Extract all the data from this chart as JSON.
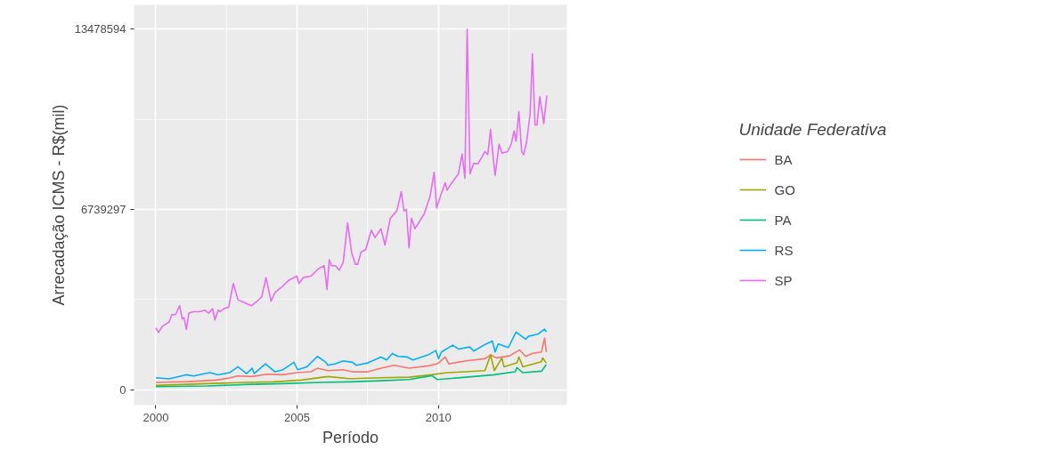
{
  "chart_data": {
    "type": "line",
    "xlabel": "Período",
    "ylabel": "Arrecadação ICMS - R$(mil)",
    "legend_title": "Unidade Federativa",
    "legend": "right",
    "grid": true,
    "xlim": [
      1999.23,
      2014.55
    ],
    "xticks": [
      2000,
      2005,
      2010
    ],
    "ylim": [
      -580000,
      14390000
    ],
    "yticks": [
      0,
      6739297,
      13478594
    ],
    "series": [
      {
        "name": "BA",
        "color": "#f8766d",
        "x": [
          2000.0,
          2001.14,
          2002.14,
          2002.61,
          2002.88,
          2003.41,
          2003.95,
          2004.48,
          2005.02,
          2005.49,
          2005.72,
          2006.09,
          2006.63,
          2006.96,
          2007.5,
          2007.97,
          2008.43,
          2008.97,
          2009.64,
          2009.97,
          2010.24,
          2010.37,
          2010.98,
          2011.65,
          2011.85,
          2012.05,
          2012.52,
          2012.88,
          2013.09,
          2013.32,
          2013.65,
          2013.76,
          2013.82
        ],
        "values": [
          266000,
          299000,
          355000,
          432000,
          510000,
          488000,
          576000,
          554000,
          632000,
          665000,
          798000,
          709000,
          743000,
          665000,
          665000,
          798000,
          909000,
          798000,
          887000,
          964000,
          1219000,
          964000,
          1075000,
          1153000,
          1297000,
          1186000,
          1263000,
          1485000,
          1241000,
          1352000,
          1408000,
          1928000,
          1408000
        ]
      },
      {
        "name": "GO",
        "color": "#a3a500",
        "x": [
          2000.0,
          2001.81,
          2003.15,
          2004.15,
          2005.15,
          2006.09,
          2006.83,
          2006.96,
          2007.97,
          2008.97,
          2009.77,
          2010.31,
          2010.98,
          2011.65,
          2011.85,
          2011.98,
          2012.25,
          2012.32,
          2012.78,
          2012.85,
          2012.99,
          2013.65,
          2013.69,
          2013.82
        ],
        "values": [
          155000,
          222000,
          266000,
          288000,
          355000,
          488000,
          410000,
          410000,
          443000,
          465000,
          554000,
          632000,
          665000,
          709000,
          1297000,
          709000,
          1186000,
          853000,
          997000,
          1219000,
          853000,
          1042000,
          1186000,
          997000
        ]
      },
      {
        "name": "PA",
        "color": "#00bf7d",
        "x": [
          2000.0,
          2001.81,
          2003.15,
          2004.48,
          2005.82,
          2006.83,
          2007.97,
          2008.97,
          2009.77,
          2009.97,
          2010.98,
          2011.98,
          2012.72,
          2012.78,
          2012.99,
          2013.65,
          2013.82
        ],
        "values": [
          111000,
          133000,
          188000,
          222000,
          266000,
          288000,
          332000,
          377000,
          521000,
          377000,
          465000,
          554000,
          665000,
          820000,
          632000,
          687000,
          931000
        ]
      },
      {
        "name": "RS",
        "color": "#00b0f6",
        "x": [
          2000.0,
          2000.47,
          2001.07,
          2001.34,
          2001.91,
          2002.21,
          2002.61,
          2002.91,
          2003.21,
          2003.41,
          2003.48,
          2003.88,
          2004.22,
          2004.48,
          2004.89,
          2005.02,
          2005.35,
          2005.72,
          2006.02,
          2006.09,
          2006.36,
          2006.63,
          2006.96,
          2007.1,
          2007.5,
          2007.97,
          2008.17,
          2008.37,
          2008.57,
          2008.9,
          2009.1,
          2009.64,
          2009.91,
          2010.01,
          2010.11,
          2010.51,
          2010.71,
          2011.11,
          2011.25,
          2011.65,
          2011.91,
          2012.01,
          2012.12,
          2012.48,
          2012.75,
          2013.09,
          2013.19,
          2013.52,
          2013.76,
          2013.82
        ],
        "values": [
          443000,
          399000,
          554000,
          510000,
          632000,
          554000,
          632000,
          853000,
          598000,
          798000,
          598000,
          964000,
          665000,
          731000,
          1020000,
          743000,
          853000,
          1241000,
          1020000,
          909000,
          964000,
          1075000,
          1020000,
          909000,
          997000,
          1219000,
          1108000,
          1352000,
          1241000,
          1219000,
          1108000,
          1297000,
          1463000,
          1153000,
          1408000,
          1662000,
          1518000,
          1596000,
          1441000,
          1685000,
          1818000,
          1408000,
          1707000,
          1574000,
          2150000,
          1884000,
          1995000,
          2073000,
          2261000,
          2150000
        ]
      },
      {
        "name": "SP",
        "color": "#e76bf3",
        "x": [
          2000.0,
          2000.1,
          2000.23,
          2000.47,
          2000.57,
          2000.7,
          2000.84,
          2000.94,
          2001.0,
          2001.08,
          2001.17,
          2001.34,
          2001.54,
          2001.74,
          2001.87,
          2002.01,
          2002.09,
          2002.21,
          2002.28,
          2002.41,
          2002.58,
          2002.74,
          2002.91,
          2003.15,
          2003.38,
          2003.58,
          2003.75,
          2003.9,
          2004.08,
          2004.22,
          2004.48,
          2004.69,
          2004.99,
          2005.07,
          2005.22,
          2005.49,
          2005.76,
          2005.96,
          2006.06,
          2006.14,
          2006.22,
          2006.36,
          2006.49,
          2006.63,
          2006.79,
          2006.93,
          2007.06,
          2007.15,
          2007.26,
          2007.43,
          2007.63,
          2007.76,
          2007.97,
          2008.11,
          2008.3,
          2008.53,
          2008.69,
          2008.78,
          2008.87,
          2008.96,
          2009.05,
          2009.17,
          2009.5,
          2009.71,
          2009.85,
          2009.94,
          2010.11,
          2010.24,
          2010.31,
          2010.44,
          2010.71,
          2010.84,
          2010.94,
          2011.02,
          2011.12,
          2011.25,
          2011.41,
          2011.65,
          2011.75,
          2011.85,
          2011.95,
          2012.01,
          2012.15,
          2012.25,
          2012.45,
          2012.58,
          2012.68,
          2012.75,
          2012.85,
          2012.95,
          2013.02,
          2013.12,
          2013.25,
          2013.33,
          2013.42,
          2013.49,
          2013.59,
          2013.73,
          2013.84
        ],
        "values": [
          2305000,
          2139000,
          2361000,
          2527000,
          2804000,
          2804000,
          3137000,
          2638000,
          2693000,
          2250000,
          2860000,
          2915000,
          2915000,
          2971000,
          2860000,
          3026000,
          2605000,
          2971000,
          2915000,
          3026000,
          3081000,
          3968000,
          3358000,
          3248000,
          3137000,
          3303000,
          3469000,
          4190000,
          3303000,
          3636000,
          3857000,
          4079000,
          4245000,
          3968000,
          4190000,
          4245000,
          4522000,
          4633000,
          3746000,
          4855000,
          4633000,
          4633000,
          4467000,
          4744000,
          6240000,
          5132000,
          4689000,
          4689000,
          5132000,
          5243000,
          5963000,
          5686000,
          6019000,
          5409000,
          6407000,
          6684000,
          7404000,
          6684000,
          6739000,
          5298000,
          6407000,
          6019000,
          6573000,
          7238000,
          8125000,
          6794000,
          7349000,
          7737000,
          7459000,
          7681000,
          8069000,
          8812000,
          7903000,
          13480000,
          8069000,
          8457000,
          8457000,
          8901000,
          8790000,
          9732000,
          8568000,
          8014000,
          9178000,
          8845000,
          8901000,
          9178000,
          9676000,
          9288000,
          10397000,
          8901000,
          8790000,
          9233000,
          10341000,
          12558000,
          9898000,
          9898000,
          10951000,
          9953000,
          11006000
        ]
      }
    ]
  }
}
